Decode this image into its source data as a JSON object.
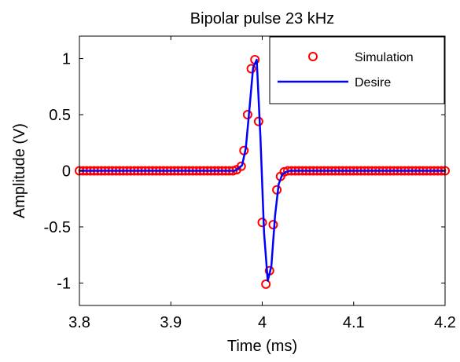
{
  "chart_data": {
    "type": "line",
    "title": "Bipolar pulse 23 kHz",
    "xlabel": "Time (ms)",
    "ylabel": "Amplitude (V)",
    "xlim": [
      3.8,
      4.2
    ],
    "ylim": [
      -1.2,
      1.2
    ],
    "xticks": [
      3.8,
      3.9,
      4.0,
      4.1,
      4.2
    ],
    "xtick_labels": [
      "3.8",
      "3.9",
      "4",
      "4.1",
      "4.2"
    ],
    "yticks": [
      -1,
      -0.5,
      0,
      0.5,
      1
    ],
    "ytick_labels": [
      "-1",
      "-0.5",
      "0",
      "0.5",
      "1"
    ],
    "grid": false,
    "legend_position": "top-right",
    "series": [
      {
        "name": "Simulation",
        "style": "markers",
        "marker": "circle",
        "color": "#ff0000",
        "x": [
          3.8,
          3.804,
          3.808,
          3.812,
          3.816,
          3.82,
          3.824,
          3.828,
          3.832,
          3.836,
          3.84,
          3.844,
          3.848,
          3.852,
          3.856,
          3.86,
          3.864,
          3.868,
          3.872,
          3.876,
          3.88,
          3.884,
          3.888,
          3.892,
          3.896,
          3.9,
          3.904,
          3.908,
          3.912,
          3.916,
          3.92,
          3.924,
          3.928,
          3.932,
          3.936,
          3.94,
          3.944,
          3.948,
          3.952,
          3.956,
          3.96,
          3.964,
          3.968,
          3.972,
          3.977,
          3.98,
          3.984,
          3.988,
          3.992,
          3.996,
          4.0,
          4.004,
          4.008,
          4.012,
          4.016,
          4.02,
          4.024,
          4.028,
          4.032,
          4.036,
          4.04,
          4.044,
          4.048,
          4.052,
          4.056,
          4.06,
          4.064,
          4.068,
          4.072,
          4.076,
          4.08,
          4.084,
          4.088,
          4.092,
          4.096,
          4.1,
          4.104,
          4.108,
          4.112,
          4.116,
          4.12,
          4.124,
          4.128,
          4.132,
          4.136,
          4.14,
          4.144,
          4.148,
          4.152,
          4.156,
          4.16,
          4.164,
          4.168,
          4.172,
          4.176,
          4.18,
          4.184,
          4.188,
          4.192,
          4.196,
          4.2
        ],
        "y": [
          0,
          0,
          0,
          0,
          0,
          0,
          0,
          0,
          0,
          0,
          0,
          0,
          0,
          0,
          0,
          0,
          0,
          0,
          0,
          0,
          0,
          0,
          0,
          0,
          0,
          0,
          0,
          0,
          0,
          0,
          0,
          0,
          0,
          0,
          0,
          0,
          0,
          0,
          0,
          0,
          0,
          0,
          0,
          0.01,
          0.04,
          0.18,
          0.5,
          0.91,
          0.99,
          0.44,
          -0.46,
          -1.01,
          -0.89,
          -0.48,
          -0.17,
          -0.05,
          -0.01,
          0,
          0,
          0,
          0,
          0,
          0,
          0,
          0,
          0,
          0,
          0,
          0,
          0,
          0,
          0,
          0,
          0,
          0,
          0,
          0,
          0,
          0,
          0,
          0,
          0,
          0,
          0,
          0,
          0,
          0,
          0,
          0,
          0,
          0,
          0,
          0,
          0,
          0,
          0,
          0,
          0,
          0,
          0,
          0
        ]
      },
      {
        "name": "Desire",
        "style": "line",
        "color": "#0000ff",
        "x": [
          3.8,
          3.97,
          3.974,
          3.978,
          3.982,
          3.986,
          3.99,
          3.994,
          3.998,
          4.002,
          4.006,
          4.01,
          4.014,
          4.018,
          4.022,
          4.026,
          4.03,
          4.2
        ],
        "y": [
          0,
          0,
          0.02,
          0.05,
          0.2,
          0.55,
          0.92,
          0.99,
          0.3,
          -0.55,
          -0.98,
          -0.85,
          -0.4,
          -0.12,
          -0.03,
          -0.01,
          0,
          0
        ]
      }
    ]
  }
}
